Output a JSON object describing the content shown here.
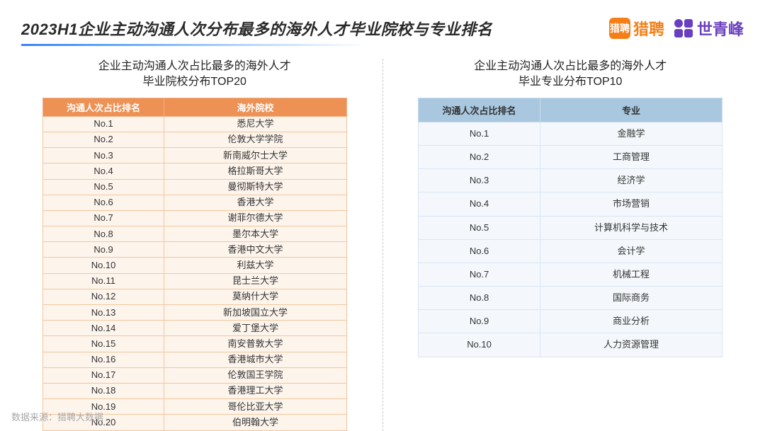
{
  "header": {
    "title": "2023H1企业主动沟通人次分布最多的海外人才毕业院校与专业排名",
    "liepin_badge": "猎聘",
    "liepin_text": "猎聘",
    "sqf_text": "世青峰"
  },
  "left": {
    "subtitle_line1": "企业主动沟通人次占比最多的海外人才",
    "subtitle_line2": "毕业院校分布TOP20",
    "col1": "沟通人次占比排名",
    "col2": "海外院校",
    "header_bg": "#ed9155",
    "row_bg": "#fdf4ec",
    "rows": [
      {
        "rank": "No.1",
        "name": "悉尼大学"
      },
      {
        "rank": "No.2",
        "name": "伦敦大学学院"
      },
      {
        "rank": "No.3",
        "name": "新南威尔士大学"
      },
      {
        "rank": "No.4",
        "name": "格拉斯哥大学"
      },
      {
        "rank": "No.5",
        "name": "曼彻斯特大学"
      },
      {
        "rank": "No.6",
        "name": "香港大学"
      },
      {
        "rank": "No.7",
        "name": "谢菲尔德大学"
      },
      {
        "rank": "No.8",
        "name": "墨尔本大学"
      },
      {
        "rank": "No.9",
        "name": "香港中文大学"
      },
      {
        "rank": "No.10",
        "name": "利兹大学"
      },
      {
        "rank": "No.11",
        "name": "昆士兰大学"
      },
      {
        "rank": "No.12",
        "name": "莫纳什大学"
      },
      {
        "rank": "No.13",
        "name": "新加坡国立大学"
      },
      {
        "rank": "No.14",
        "name": "爱丁堡大学"
      },
      {
        "rank": "No.15",
        "name": "南安普敦大学"
      },
      {
        "rank": "No.16",
        "name": "香港城市大学"
      },
      {
        "rank": "No.17",
        "name": "伦敦国王学院"
      },
      {
        "rank": "No.18",
        "name": "香港理工大学"
      },
      {
        "rank": "No.19",
        "name": "哥伦比亚大学"
      },
      {
        "rank": "No.20",
        "name": "伯明翰大学"
      }
    ]
  },
  "right": {
    "subtitle_line1": "企业主动沟通人次占比最多的海外人才",
    "subtitle_line2": "毕业专业分布TOP10",
    "col1": "沟通人次占比排名",
    "col2": "专业",
    "header_bg": "#a9c7df",
    "row_bg": "#f4f8fc",
    "rows": [
      {
        "rank": "No.1",
        "name": "金融学"
      },
      {
        "rank": "No.2",
        "name": "工商管理"
      },
      {
        "rank": "No.3",
        "name": "经济学"
      },
      {
        "rank": "No.4",
        "name": "市场营销"
      },
      {
        "rank": "No.5",
        "name": "计算机科学与技术"
      },
      {
        "rank": "No.6",
        "name": "会计学"
      },
      {
        "rank": "No.7",
        "name": "机械工程"
      },
      {
        "rank": "No.8",
        "name": "国际商务"
      },
      {
        "rank": "No.9",
        "name": "商业分析"
      },
      {
        "rank": "No.10",
        "name": "人力资源管理"
      }
    ]
  },
  "source": "数据来源：猎聘大数据"
}
